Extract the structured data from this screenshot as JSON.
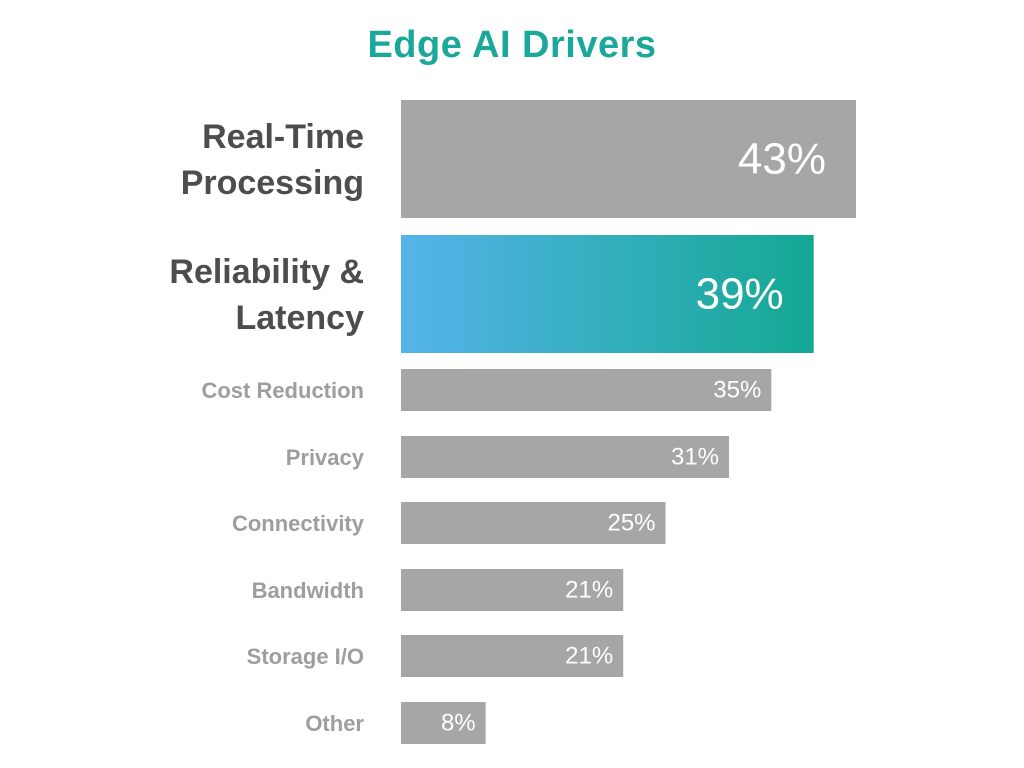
{
  "chart_data": {
    "type": "bar",
    "orientation": "horizontal",
    "title": "Edge AI Drivers",
    "categories": [
      "Real-Time Processing",
      "Reliability & Latency",
      "Cost Reduction",
      "Privacy",
      "Connectivity",
      "Bandwidth",
      "Storage I/O",
      "Other"
    ],
    "category_lines": [
      [
        "Real-",
        "Time"
      ],
      [
        "Processing"
      ]
    ],
    "values": [
      43,
      39,
      35,
      31,
      25,
      21,
      21,
      8
    ],
    "value_labels": [
      "43%",
      "39%",
      "35%",
      "31%",
      "25%",
      "21%",
      "21%",
      "8%"
    ],
    "unit": "%",
    "xlim": [
      0,
      43
    ],
    "emphasized_categories": [
      "Real-Time Processing",
      "Reliability & Latency"
    ],
    "highlighted_category": "Reliability & Latency",
    "grid": false,
    "legend": "none",
    "colors": {
      "title": "#1aa89a",
      "bar_default": "#a6a6a6",
      "highlight_start": "#55b4ea",
      "highlight_end": "#13a892",
      "label_emphasized": "#4d4d4d",
      "label_default": "#9e9e9e",
      "value_text": "#ffffff",
      "background": "#ffffff"
    }
  }
}
